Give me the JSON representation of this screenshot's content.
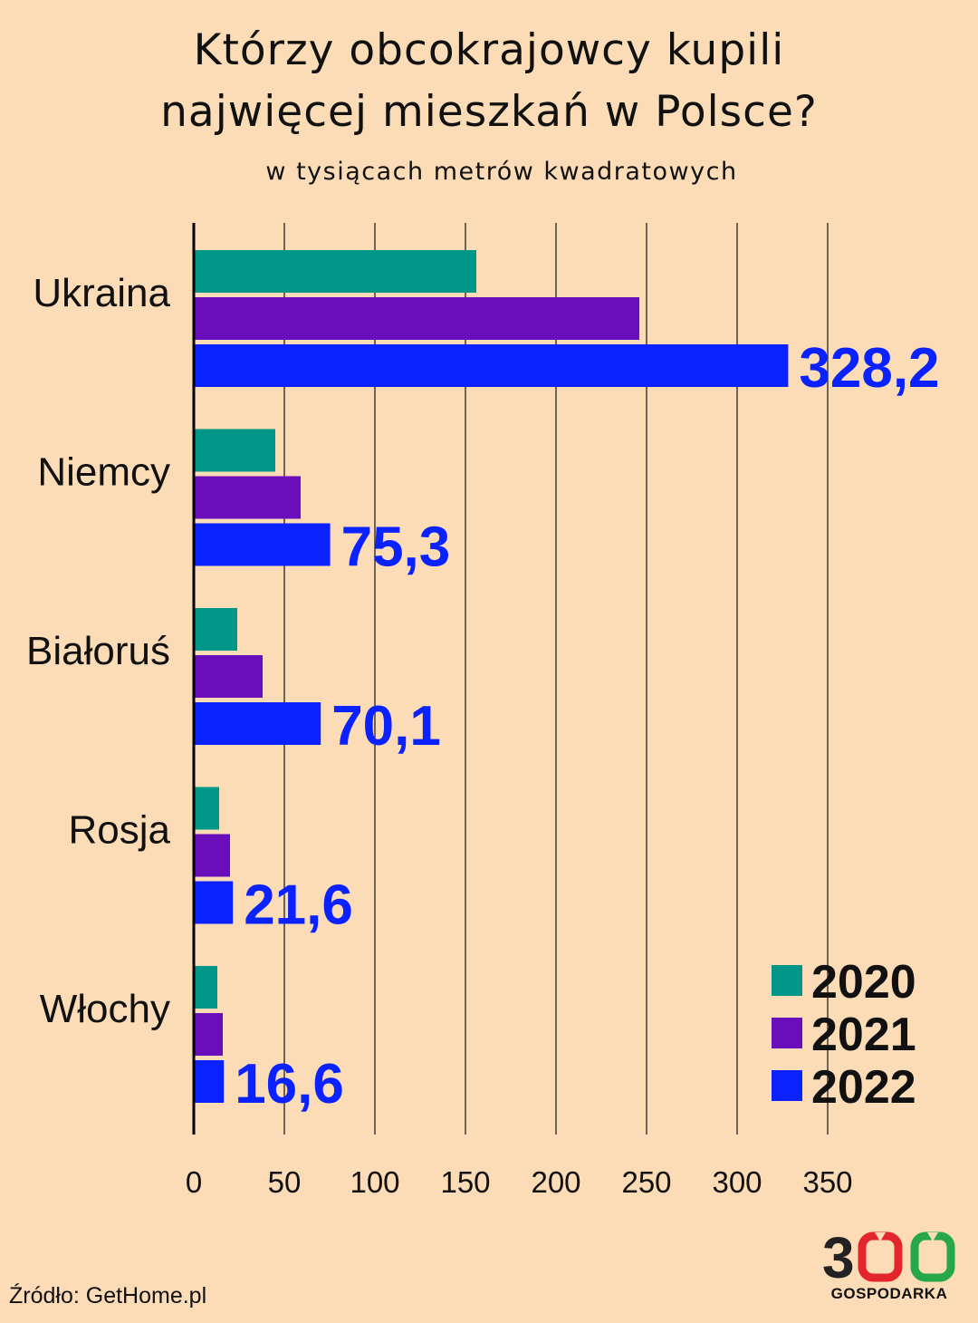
{
  "title_line1": "Którzy obcokrajowcy kupili",
  "title_line2": "najwięcej mieszkań w Polsce?",
  "subtitle": "w tysiącach metrów kwadratowych",
  "source": "Źródło: GetHome.pl",
  "logo": {
    "number": "300",
    "text": "GOSPODARKA"
  },
  "colors": {
    "background": "#fbdcb6",
    "2020": "#009688",
    "2021": "#6a0dba",
    "2022": "#0a22ff",
    "value_label": "#0a22ff",
    "logo_dark": "#222222",
    "logo_red": "#e3262c",
    "logo_green": "#26a848"
  },
  "chart_data": {
    "type": "bar",
    "orientation": "horizontal",
    "categories": [
      "Ukraina",
      "Niemcy",
      "Białoruś",
      "Rosja",
      "Włochy"
    ],
    "series": [
      {
        "name": "2020",
        "values": [
          156,
          45,
          24,
          14,
          13
        ]
      },
      {
        "name": "2021",
        "values": [
          246,
          59,
          38,
          20,
          16
        ]
      },
      {
        "name": "2022",
        "values": [
          328.2,
          75.3,
          70.1,
          21.6,
          16.6
        ]
      }
    ],
    "value_labels": [
      "328,2",
      "75,3",
      "70,1",
      "21,6",
      "16,6"
    ],
    "xlim": [
      0,
      350
    ],
    "xticks": [
      0,
      50,
      100,
      150,
      200,
      250,
      300,
      350
    ],
    "grid": "vertical",
    "legend": "bottom-right"
  }
}
